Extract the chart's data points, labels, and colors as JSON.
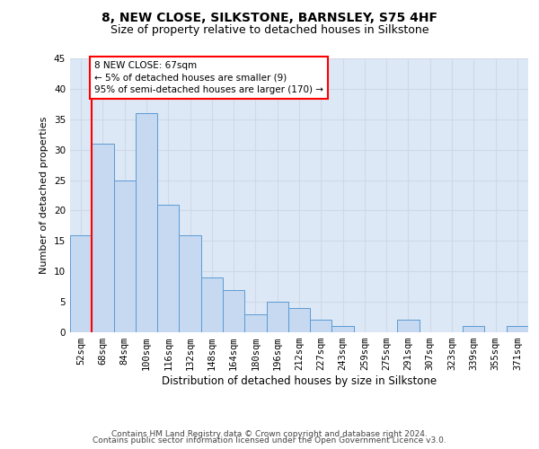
{
  "title": "8, NEW CLOSE, SILKSTONE, BARNSLEY, S75 4HF",
  "subtitle": "Size of property relative to detached houses in Silkstone",
  "xlabel": "Distribution of detached houses by size in Silkstone",
  "ylabel": "Number of detached properties",
  "bar_labels": [
    "52sqm",
    "68sqm",
    "84sqm",
    "100sqm",
    "116sqm",
    "132sqm",
    "148sqm",
    "164sqm",
    "180sqm",
    "196sqm",
    "212sqm",
    "227sqm",
    "243sqm",
    "259sqm",
    "275sqm",
    "291sqm",
    "307sqm",
    "323sqm",
    "339sqm",
    "355sqm",
    "371sqm"
  ],
  "bar_values": [
    16,
    31,
    25,
    36,
    21,
    16,
    9,
    7,
    3,
    5,
    4,
    2,
    1,
    0,
    0,
    2,
    0,
    0,
    1,
    0,
    1
  ],
  "bar_color": "#c6d9f0",
  "bar_edge_color": "#5b9bd5",
  "marker_label": "8 NEW CLOSE: 67sqm\n← 5% of detached houses are smaller (9)\n95% of semi-detached houses are larger (170) →",
  "marker_line_color": "#ff0000",
  "annotation_box_edge_color": "#ff0000",
  "ylim": [
    0,
    45
  ],
  "yticks": [
    0,
    5,
    10,
    15,
    20,
    25,
    30,
    35,
    40,
    45
  ],
  "grid_color": "#d0d8e8",
  "background_color": "#dce8f5",
  "footer_line1": "Contains HM Land Registry data © Crown copyright and database right 2024.",
  "footer_line2": "Contains public sector information licensed under the Open Government Licence v3.0.",
  "title_fontsize": 10,
  "subtitle_fontsize": 9,
  "xlabel_fontsize": 8.5,
  "ylabel_fontsize": 8,
  "tick_fontsize": 7.5,
  "annotation_fontsize": 7.5,
  "footer_fontsize": 6.5
}
